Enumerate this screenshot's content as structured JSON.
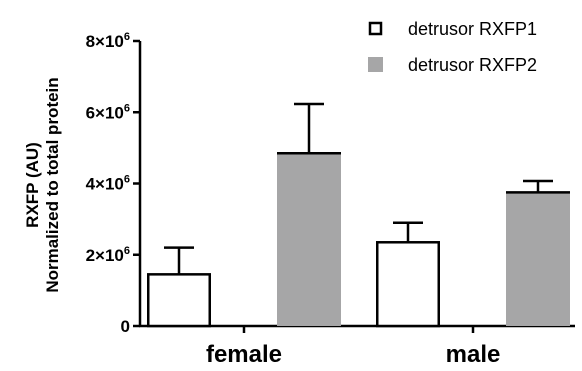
{
  "chart_data": {
    "type": "bar",
    "categories": [
      "female",
      "male"
    ],
    "series": [
      {
        "name": "detrusor RXFP1",
        "values": [
          1450000,
          2350000
        ],
        "errors": [
          750000,
          550000
        ],
        "fill": "#ffffff",
        "stroke": "#000000"
      },
      {
        "name": "detrusor RXFP2",
        "values": [
          4850000,
          3750000
        ],
        "errors": [
          1380000,
          320000
        ],
        "fill": "#a6a6a7",
        "stroke": "#a6a6a7"
      }
    ],
    "ylabel_line1": "RXFP (AU)",
    "ylabel_line2": "Normalized to total protein",
    "ylim": [
      0,
      8000000
    ],
    "yticks": [
      {
        "value": 0,
        "label": "0",
        "base": "0",
        "exp": ""
      },
      {
        "value": 2000000,
        "label": "2×10⁶",
        "base": "2×10",
        "exp": "6"
      },
      {
        "value": 4000000,
        "label": "4×10⁶",
        "base": "4×10",
        "exp": "6"
      },
      {
        "value": 6000000,
        "label": "6×10⁶",
        "base": "6×10",
        "exp": "6"
      },
      {
        "value": 8000000,
        "label": "8×10⁶",
        "base": "8×10",
        "exp": "6"
      }
    ],
    "legend_position": "top-right",
    "grid": false
  }
}
